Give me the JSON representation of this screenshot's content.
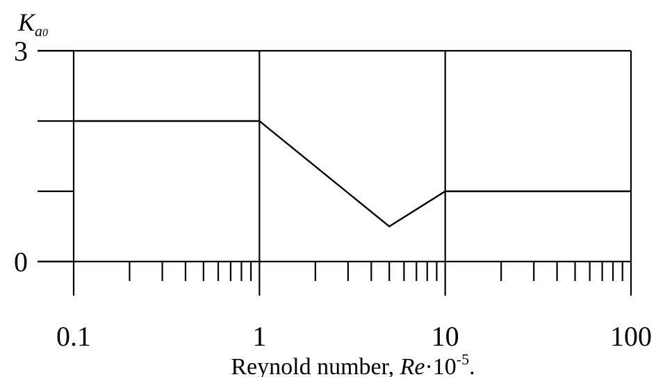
{
  "chart_data": {
    "type": "line",
    "title": "",
    "xscale": "log",
    "xlim": [
      0.1,
      100
    ],
    "ylim": [
      0,
      3
    ],
    "grid": true,
    "ylabel": {
      "main": "K",
      "sub": "a",
      "sub2": "0"
    },
    "xlabel": {
      "prefix": "Reynold number, ",
      "var": "Re",
      "mid": "·10",
      "exp": "-5",
      "suffix": "."
    },
    "x_ticks": [
      {
        "value": 0.1,
        "label": "0.1"
      },
      {
        "value": 1,
        "label": "1"
      },
      {
        "value": 10,
        "label": "10"
      },
      {
        "value": 100,
        "label": "100"
      }
    ],
    "y_ticks": [
      {
        "value": 0,
        "label": "0"
      },
      {
        "value": 1,
        "label": ""
      },
      {
        "value": 2,
        "label": ""
      },
      {
        "value": 3,
        "label": "3"
      }
    ],
    "series": [
      {
        "x": [
          0.1,
          1,
          5,
          10,
          100
        ],
        "y": [
          2,
          2,
          0.5,
          1,
          1
        ]
      }
    ]
  }
}
